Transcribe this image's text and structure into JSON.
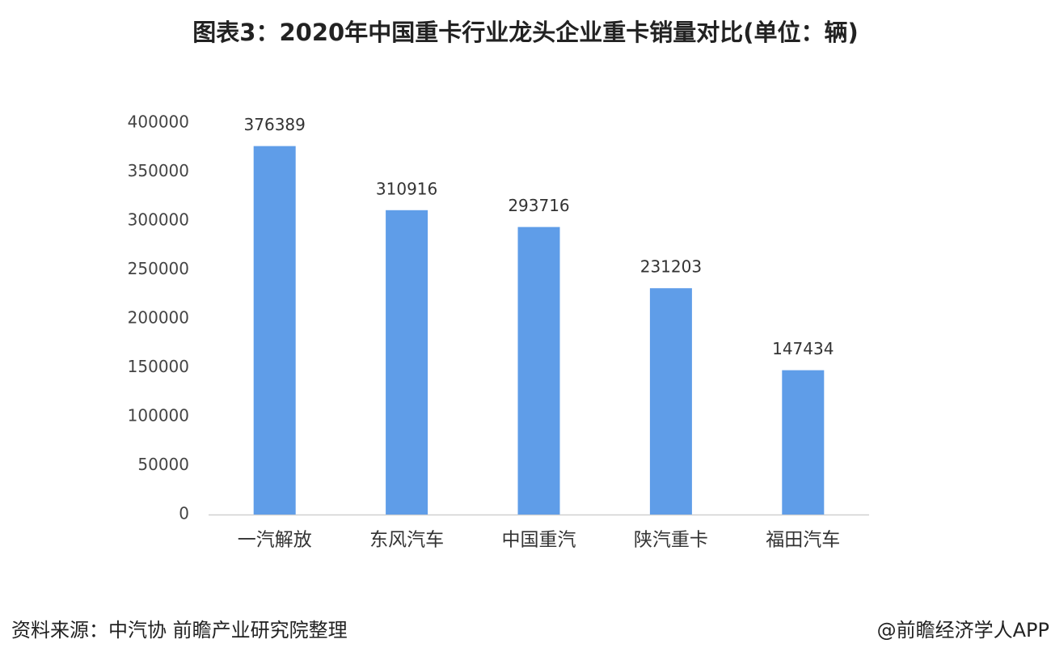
{
  "chart_data": {
    "type": "bar",
    "title": "图表3：2020年中国重卡行业龙头企业重卡销量对比(单位：辆)",
    "categories": [
      "一汽解放",
      "东风汽车",
      "中国重汽",
      "陕汽重卡",
      "福田汽车"
    ],
    "values": [
      376389,
      310916,
      293716,
      231203,
      147434
    ],
    "color": "#5f9de8",
    "ylim": [
      0,
      400000
    ],
    "yticks": [
      0,
      50000,
      100000,
      150000,
      200000,
      250000,
      300000,
      350000,
      400000
    ],
    "grid": false,
    "source": "资料来源：中汽协 前瞻产业研究院整理",
    "credit": "@前瞻经济学人APP"
  }
}
